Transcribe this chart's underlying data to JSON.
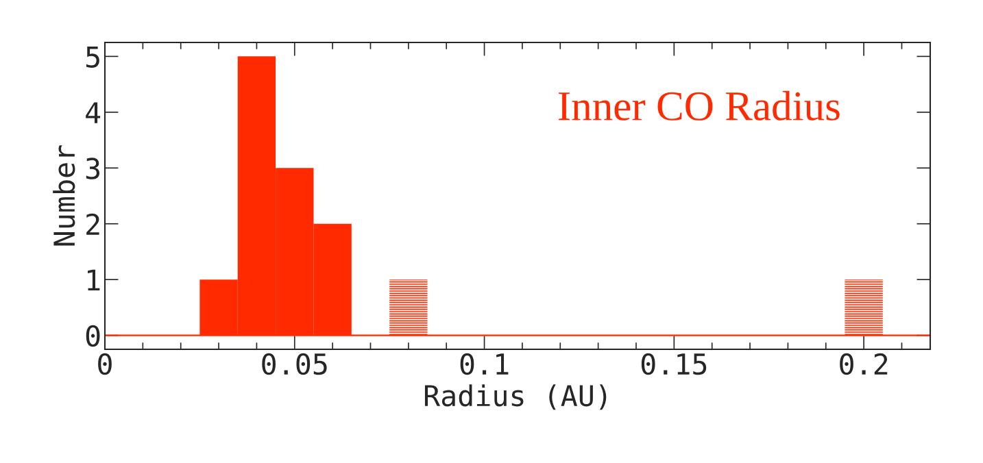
{
  "chart_data": {
    "type": "histogram",
    "xlabel": "Radius (AU)",
    "ylabel": "Number",
    "annotations": [
      "Inner CO Radius"
    ],
    "bins": [
      0.025,
      0.035,
      0.045,
      0.055,
      0.065,
      0.075,
      0.085,
      0.195,
      0.205
    ],
    "series": [
      {
        "color": "#ff2a00",
        "values": [
          1,
          5,
          3,
          2,
          0,
          null,
          0,
          null
        ]
      },
      {
        "color": "#ff2a00",
        "values": [
          null,
          null,
          null,
          null,
          null,
          1,
          null,
          1
        ]
      }
    ],
    "ref_lines": [
      {
        "axis": "y",
        "value": 0,
        "color": "#ff2a00"
      }
    ],
    "xlim": [
      0,
      0.2175
    ],
    "ylim": [
      -0.25,
      5.25
    ],
    "xticks": [
      0,
      {
        "value": 0.01,
        "label": null
      },
      {
        "value": 0.02,
        "label": null
      },
      {
        "value": 0.03,
        "label": null
      },
      {
        "value": 0.04,
        "label": null
      },
      0.05,
      {
        "value": 0.06,
        "label": null
      },
      {
        "value": 0.07,
        "label": null
      },
      {
        "value": 0.08,
        "label": null
      },
      {
        "value": 0.09,
        "label": null
      },
      0.1,
      {
        "value": 0.11,
        "label": null
      },
      {
        "value": 0.12,
        "label": null
      },
      {
        "value": 0.13,
        "label": null
      },
      {
        "value": 0.14,
        "label": null
      },
      0.15,
      {
        "value": 0.16,
        "label": null
      },
      {
        "value": 0.17,
        "label": null
      },
      {
        "value": 0.18,
        "label": null
      },
      {
        "value": 0.19,
        "label": null
      },
      0.2,
      {
        "value": 0.21,
        "label": null
      }
    ],
    "yticks": [
      0,
      1,
      2,
      3,
      4,
      5
    ],
    "grid": false,
    "legend": false
  }
}
